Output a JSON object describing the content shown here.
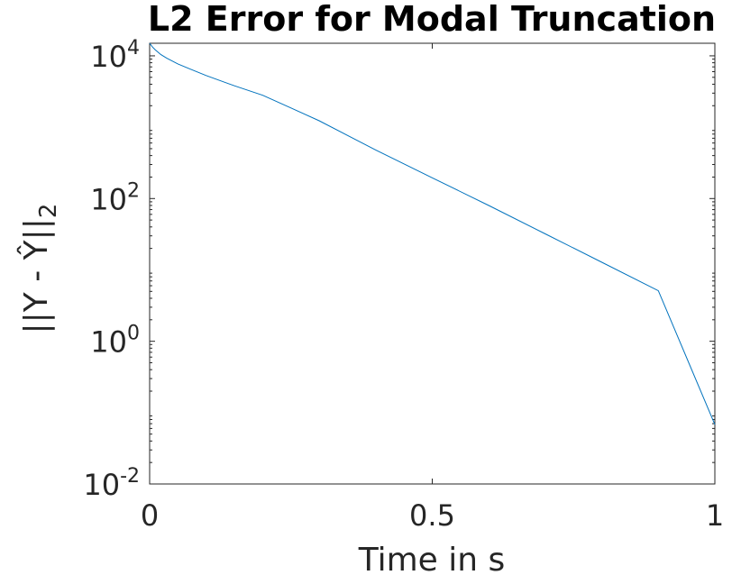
{
  "chart_data": {
    "type": "line",
    "title": "L2 Error for Modal Truncation",
    "xlabel": "Time in s",
    "ylabel": {
      "main": "||Y - Ŷ||",
      "subscript": "2"
    },
    "xlim": [
      0,
      1
    ],
    "ylim": [
      0.01,
      15000
    ],
    "yscale": "log",
    "grid": false,
    "box": true,
    "xticks": [
      {
        "value": 0,
        "label": "0"
      },
      {
        "value": 0.5,
        "label": "0.5"
      },
      {
        "value": 1,
        "label": "1"
      }
    ],
    "yticks": [
      {
        "value": 0.01,
        "base": "10",
        "exp": "-2"
      },
      {
        "value": 1,
        "base": "10",
        "exp": "0"
      },
      {
        "value": 100,
        "base": "10",
        "exp": "2"
      },
      {
        "value": 10000,
        "base": "10",
        "exp": "4"
      }
    ],
    "series": [
      {
        "color": "#0072BD",
        "x": [
          0,
          0.005,
          0.01,
          0.02,
          0.03,
          0.05,
          0.07,
          0.1,
          0.15,
          0.2,
          0.25,
          0.3,
          0.4,
          0.5,
          0.6,
          0.7,
          0.8,
          0.9,
          1.0
        ],
        "y": [
          15000,
          13300,
          12100,
          10400,
          9300,
          7700,
          6600,
          5300,
          3800,
          2800,
          1860,
          1230,
          480,
          195,
          80,
          32,
          12.8,
          5.1,
          0.068
        ]
      }
    ]
  }
}
